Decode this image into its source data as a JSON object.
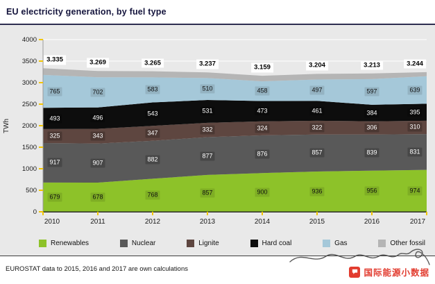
{
  "header": {
    "title": "EU electricity generation, by fuel type"
  },
  "chart_data": {
    "type": "area",
    "stacked": true,
    "title": "EU electricity generation, by fuel type",
    "ylabel": "TWh",
    "xlabel": "",
    "ylim": [
      0,
      4000
    ],
    "yticks": [
      0,
      500,
      1000,
      1500,
      2000,
      2500,
      3000,
      3500,
      4000
    ],
    "grid": true,
    "legend_position": "bottom",
    "categories": [
      "2010",
      "2011",
      "2012",
      "2013",
      "2014",
      "2015",
      "2016",
      "2017"
    ],
    "series": [
      {
        "name": "Renewables",
        "color": "#8dc229",
        "dark_text": true,
        "show_labels": true,
        "values": [
          679,
          678,
          768,
          857,
          900,
          936,
          956,
          974
        ]
      },
      {
        "name": "Nuclear",
        "color": "#595959",
        "dark_text": false,
        "show_labels": true,
        "values": [
          917,
          907,
          882,
          877,
          876,
          857,
          839,
          831
        ]
      },
      {
        "name": "Lignite",
        "color": "#5e4640",
        "dark_text": false,
        "show_labels": true,
        "values": [
          325,
          343,
          347,
          332,
          324,
          322,
          306,
          310
        ]
      },
      {
        "name": "Hard coal",
        "color": "#0d0d0d",
        "dark_text": false,
        "show_labels": true,
        "values": [
          493,
          496,
          543,
          531,
          473,
          461,
          384,
          395
        ]
      },
      {
        "name": "Gas",
        "color": "#a5c8d9",
        "dark_text": true,
        "show_labels": true,
        "values": [
          765,
          702,
          583,
          510,
          458,
          497,
          597,
          639
        ]
      },
      {
        "name": "Other fossil",
        "color": "#b5b5b5",
        "dark_text": true,
        "show_labels": false,
        "values": [
          156,
          143,
          142,
          130,
          128,
          131,
          131,
          95
        ]
      }
    ],
    "totals": [
      "3.335",
      "3.269",
      "3.265",
      "3.237",
      "3.159",
      "3.204",
      "3.213",
      "3.244"
    ]
  },
  "footer": {
    "note": "EUROSTAT data to 2015, 2016 and 2017 are own calculations"
  },
  "watermark": {
    "text": "国际能源小数据"
  }
}
